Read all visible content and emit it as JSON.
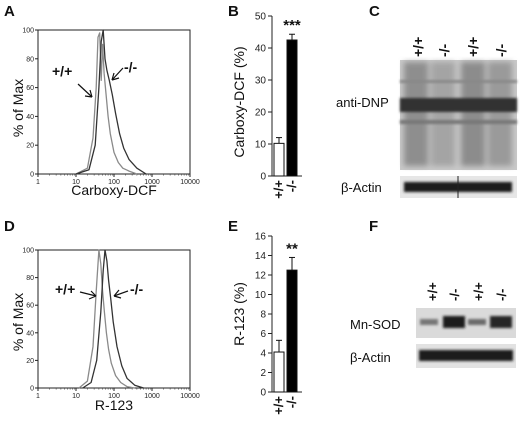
{
  "panels": {
    "A": {
      "label": "A",
      "ylabel": "% of Max",
      "xlabel": "Carboxy-DCF",
      "wt_label": "+/+",
      "ko_label": "-/-"
    },
    "B": {
      "label": "B",
      "ylabel": "Carboxy-DCF (%)",
      "significance": "***",
      "category_labels": [
        "+/+",
        "-/-"
      ]
    },
    "C": {
      "label": "C",
      "lane_labels": [
        "+/+",
        "-/-",
        "+/+",
        "-/-"
      ],
      "row_labels": [
        "anti-DNP",
        "β-Actin"
      ]
    },
    "D": {
      "label": "D",
      "ylabel": "% of Max",
      "xlabel": "R-123",
      "wt_label": "+/+",
      "ko_label": "-/-"
    },
    "E": {
      "label": "E",
      "ylabel": "R-123 (%)",
      "significance": "**",
      "category_labels": [
        "+/+",
        "-/-"
      ]
    },
    "F": {
      "label": "F",
      "lane_labels": [
        "+/+",
        "-/-",
        "+/+",
        "-/-"
      ],
      "row_labels": [
        "Mn-SOD",
        "β-Actin"
      ]
    }
  },
  "colors": {
    "wt_bar": "#ffffff",
    "ko_bar": "#000000",
    "wt_curve": "#8a8a8a",
    "ko_curve": "#333333"
  },
  "chart_data": [
    {
      "panel": "A",
      "type": "line",
      "x_scale": "log",
      "xlim": [
        1,
        10000
      ],
      "ylim": [
        0,
        100
      ],
      "x_ticks": [
        "1",
        "10",
        "100",
        "1000",
        "10000"
      ],
      "y_ticks": [
        "0",
        "20",
        "40",
        "60",
        "80",
        "100"
      ],
      "xlabel": "Carboxy-DCF",
      "ylabel": "% of Max",
      "series": [
        {
          "name": "+/+",
          "x": [
            10,
            20,
            28,
            34,
            38,
            42,
            46,
            50,
            55,
            62,
            70,
            80,
            100,
            130,
            170,
            250,
            400
          ],
          "y": [
            0,
            4,
            25,
            60,
            95,
            98,
            65,
            90,
            70,
            55,
            40,
            28,
            15,
            8,
            4,
            2,
            0
          ]
        },
        {
          "name": "-/-",
          "x": [
            10,
            22,
            32,
            40,
            46,
            52,
            58,
            65,
            75,
            90,
            110,
            140,
            180,
            250,
            400,
            700
          ],
          "y": [
            0,
            3,
            20,
            60,
            92,
            100,
            80,
            72,
            65,
            55,
            42,
            28,
            18,
            10,
            4,
            0
          ]
        }
      ]
    },
    {
      "panel": "B",
      "type": "bar",
      "categories": [
        "+/+",
        "-/-"
      ],
      "values": [
        10.2,
        42.5
      ],
      "errors": [
        1.8,
        1.8
      ],
      "ylabel": "Carboxy-DCF (%)",
      "ylim": [
        0,
        50
      ],
      "y_ticks": [
        "0",
        "10",
        "20",
        "30",
        "40",
        "50"
      ],
      "annotation": "***"
    },
    {
      "panel": "D",
      "type": "line",
      "x_scale": "log",
      "xlim": [
        1,
        10000
      ],
      "ylim": [
        0,
        100
      ],
      "x_ticks": [
        "1",
        "10",
        "100",
        "1000",
        "10000"
      ],
      "y_ticks": [
        "0",
        "20",
        "40",
        "60",
        "80",
        "100"
      ],
      "xlabel": "R-123",
      "ylabel": "% of Max",
      "series": [
        {
          "name": "+/+",
          "x": [
            12,
            20,
            28,
            34,
            40,
            45,
            50,
            56,
            63,
            72,
            85,
            110,
            150,
            220,
            350
          ],
          "y": [
            0,
            5,
            30,
            70,
            100,
            90,
            70,
            55,
            40,
            28,
            18,
            9,
            4,
            1,
            0
          ]
        },
        {
          "name": "-/-",
          "x": [
            15,
            25,
            35,
            45,
            52,
            58,
            65,
            72,
            82,
            95,
            120,
            160,
            220,
            350,
            600
          ],
          "y": [
            0,
            4,
            20,
            55,
            85,
            100,
            92,
            78,
            65,
            48,
            30,
            16,
            7,
            2,
            0
          ]
        }
      ]
    },
    {
      "panel": "E",
      "type": "bar",
      "categories": [
        "+/+",
        "-/-"
      ],
      "values": [
        4.1,
        12.5
      ],
      "errors": [
        1.2,
        1.3
      ],
      "ylabel": "R-123 (%)",
      "ylim": [
        0,
        16
      ],
      "y_ticks": [
        "0",
        "2",
        "4",
        "6",
        "8",
        "10",
        "12",
        "14",
        "16"
      ],
      "annotation": "**"
    }
  ]
}
